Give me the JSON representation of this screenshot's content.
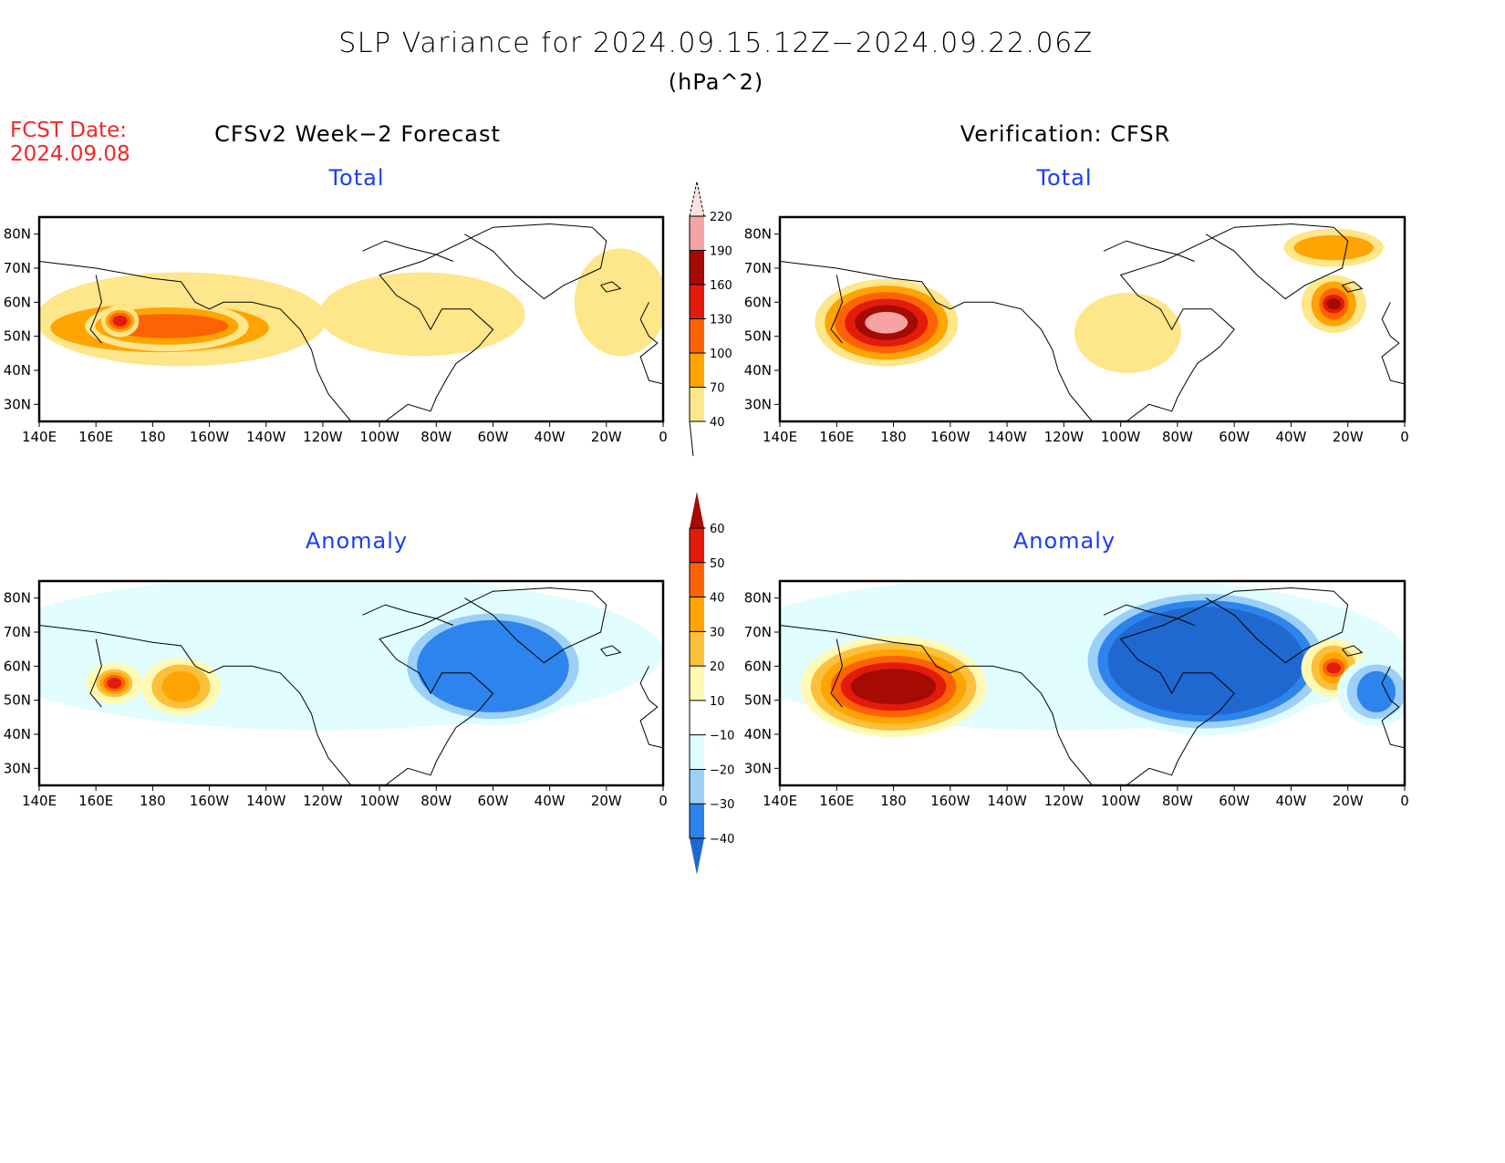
{
  "header": {
    "title": "SLP Variance for 2024.09.15.12Z−2024.09.22.06Z",
    "units": "(hPa^2)",
    "fcst_date_label": "FCST Date:",
    "fcst_date_value": "2024.09.08",
    "left_column_title": "CFSv2 Week−2 Forecast",
    "right_column_title": "Verification: CFSR"
  },
  "colors": {
    "subtitle": "#1a3cf5",
    "fcst_date": "#f0282a",
    "total_scale": [
      "#fee68a",
      "#fea403",
      "#fd6304",
      "#e21b0b",
      "#a50a03",
      "#f5a3a3",
      "#fde0e0"
    ],
    "anomaly_scale": [
      "#1f68d0",
      "#2d84ec",
      "#9cd0f8",
      "#dffdfe",
      "#ffffff",
      "#fff9b3",
      "#fdc03c",
      "#fea403",
      "#fd6304",
      "#e21b0b",
      "#a50a03"
    ]
  },
  "chart_data": [
    {
      "type": "heatmap",
      "panel": "forecast-total",
      "title": "Total",
      "xticks": [
        "140E",
        "160E",
        "180",
        "160W",
        "140W",
        "120W",
        "100W",
        "80W",
        "60W",
        "40W",
        "20W",
        "0"
      ],
      "yticks": [
        "30N",
        "40N",
        "50N",
        "60N",
        "70N",
        "80N"
      ],
      "lon_range": [
        140,
        360
      ],
      "lat_range": [
        25,
        85
      ],
      "features": [
        {
          "level": 40,
          "lon": [
            140,
            240
          ],
          "lat": [
            42,
            68
          ],
          "note": "broad N Pacific"
        },
        {
          "level": 70,
          "lon": [
            143,
            222
          ],
          "lat": [
            45,
            60
          ]
        },
        {
          "level": 100,
          "lon": [
            160,
            210
          ],
          "lat": [
            48,
            58
          ]
        },
        {
          "level": 130,
          "lon": [
            167,
            170
          ],
          "lat": [
            53,
            56
          ]
        },
        {
          "level": 40,
          "lon": [
            240,
            310
          ],
          "lat": [
            45,
            68
          ],
          "note": "Hudson Bay"
        },
        {
          "level": 40,
          "lon": [
            330,
            360
          ],
          "lat": [
            45,
            75
          ],
          "note": "NE Atlantic"
        }
      ]
    },
    {
      "type": "heatmap",
      "panel": "verification-total",
      "title": "Total",
      "xticks": [
        "140E",
        "160E",
        "180",
        "160W",
        "140W",
        "120W",
        "100W",
        "80W",
        "60W",
        "40W",
        "20W",
        "0"
      ],
      "yticks": [
        "30N",
        "40N",
        "50N",
        "60N",
        "70N",
        "80N"
      ],
      "lon_range": [
        140,
        360
      ],
      "lat_range": [
        25,
        85
      ],
      "features": [
        {
          "level": 190,
          "lon": [
            160,
            195
          ],
          "lat": [
            46,
            62
          ],
          "note": "Bering Sea max"
        },
        {
          "level": 40,
          "lon": [
            245,
            280
          ],
          "lat": [
            40,
            62
          ]
        },
        {
          "level": 160,
          "lon": [
            330,
            340
          ],
          "lat": [
            55,
            64
          ],
          "note": "Iceland"
        },
        {
          "level": 70,
          "lon": [
            320,
            350
          ],
          "lat": [
            72,
            80
          ]
        }
      ]
    },
    {
      "type": "heatmap",
      "panel": "forecast-anomaly",
      "title": "Anomaly",
      "xticks": [
        "140E",
        "160E",
        "180",
        "160W",
        "140W",
        "120W",
        "100W",
        "80W",
        "60W",
        "40W",
        "20W",
        "0"
      ],
      "yticks": [
        "30N",
        "40N",
        "50N",
        "60N",
        "70N",
        "80N"
      ],
      "lon_range": [
        140,
        360
      ],
      "lat_range": [
        25,
        85
      ],
      "features": [
        {
          "level": 50,
          "lon": [
            163,
            170
          ],
          "lat": [
            53,
            57
          ]
        },
        {
          "level": 30,
          "lon": [
            180,
            200
          ],
          "lat": [
            48,
            60
          ]
        },
        {
          "level": -30,
          "lon": [
            270,
            330
          ],
          "lat": [
            45,
            75
          ],
          "note": "NW Atlantic / Greenland"
        }
      ]
    },
    {
      "type": "heatmap",
      "panel": "verification-anomaly",
      "title": "Anomaly",
      "xticks": [
        "140E",
        "160E",
        "180",
        "160W",
        "140W",
        "120W",
        "100W",
        "80W",
        "60W",
        "40W",
        "20W",
        "0"
      ],
      "yticks": [
        "30N",
        "40N",
        "50N",
        "60N",
        "70N",
        "80N"
      ],
      "lon_range": [
        140,
        360
      ],
      "lat_range": [
        25,
        85
      ],
      "features": [
        {
          "level": 60,
          "lon": [
            155,
            205
          ],
          "lat": [
            44,
            64
          ],
          "note": "Bering Sea"
        },
        {
          "level": -40,
          "lon": [
            250,
            330
          ],
          "lat": [
            43,
            80
          ],
          "note": "Canada / Greenland"
        },
        {
          "level": 50,
          "lon": [
            330,
            340
          ],
          "lat": [
            55,
            64
          ]
        },
        {
          "level": -30,
          "lon": [
            340,
            360
          ],
          "lat": [
            45,
            60
          ]
        }
      ]
    }
  ],
  "colorbars": {
    "total": {
      "labels": [
        "40",
        "70",
        "100",
        "130",
        "160",
        "190",
        "220"
      ]
    },
    "anomaly": {
      "labels": [
        "−40",
        "−30",
        "−20",
        "−10",
        "10",
        "20",
        "30",
        "40",
        "50",
        "60"
      ]
    }
  }
}
